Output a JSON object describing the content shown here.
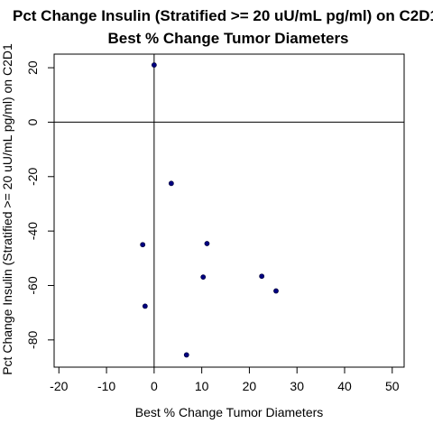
{
  "chart_data": {
    "type": "scatter",
    "title": "Pct Change Insulin (Stratified >= 20 uU/mL pg/ml) on C2D1",
    "subtitle": "Best % Change Tumor Diameters",
    "xlabel": "Best % Change Tumor Diameters",
    "ylabel": "Pct Change Insulin (Stratified >= 20 uU/mL pg/ml) on C2D1",
    "xlim": [
      -21,
      52.5
    ],
    "ylim": [
      -90,
      25
    ],
    "xticks": [
      -20,
      -10,
      0,
      10,
      20,
      30,
      40,
      50
    ],
    "yticks": [
      20,
      0,
      -20,
      -40,
      -60,
      -80
    ],
    "reference_lines": {
      "x": 0,
      "y": 0
    },
    "grid": false,
    "point_color": "#000080",
    "points": [
      {
        "x": 0.0,
        "y": 21.0
      },
      {
        "x": 3.6,
        "y": -22.5
      },
      {
        "x": -2.4,
        "y": -45.0
      },
      {
        "x": 11.1,
        "y": -44.6
      },
      {
        "x": 10.3,
        "y": -56.9
      },
      {
        "x": 22.6,
        "y": -56.6
      },
      {
        "x": 25.6,
        "y": -62.0
      },
      {
        "x": -1.9,
        "y": -67.6
      },
      {
        "x": 6.8,
        "y": -85.5
      }
    ]
  }
}
